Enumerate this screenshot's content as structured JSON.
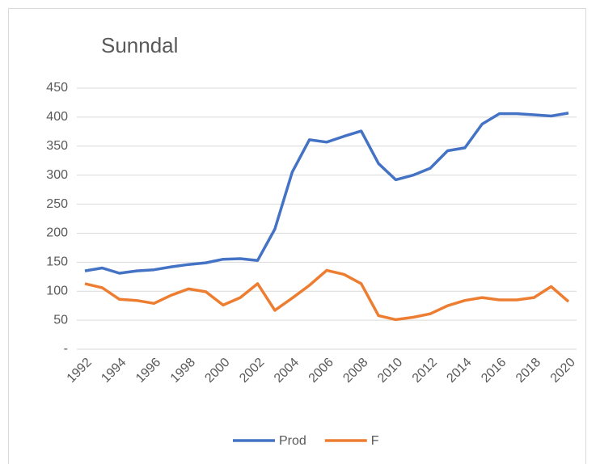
{
  "chart_data": {
    "type": "line",
    "title": "Sunndal",
    "categories": [
      "1992",
      null,
      "1994",
      null,
      "1996",
      null,
      "1998",
      null,
      "2000",
      null,
      "2002",
      null,
      "2004",
      null,
      "2006",
      null,
      "2008",
      null,
      "2010",
      null,
      "2012",
      null,
      "2014",
      null,
      "2016",
      null,
      "2018",
      null,
      "2020"
    ],
    "series": [
      {
        "name": "Prod",
        "color": "#4472c4",
        "values": [
          135,
          140,
          131,
          135,
          137,
          142,
          146,
          149,
          155,
          156,
          153,
          207,
          305,
          361,
          357,
          367,
          376,
          320,
          292,
          300,
          312,
          342,
          347,
          388,
          406,
          406,
          404,
          402,
          407
        ]
      },
      {
        "name": "F",
        "color": "#ed7d31",
        "values": [
          113,
          106,
          86,
          84,
          79,
          93,
          104,
          99,
          76,
          89,
          113,
          67,
          88,
          110,
          136,
          129,
          113,
          58,
          51,
          55,
          61,
          75,
          84,
          89,
          85,
          85,
          89,
          108,
          82
        ]
      }
    ],
    "ylim": [
      0,
      450
    ],
    "yticks": [
      {
        "value": 0,
        "label": "-"
      },
      50,
      100,
      150,
      200,
      250,
      300,
      350,
      400,
      450
    ],
    "grid": true,
    "legend": "bottom"
  }
}
